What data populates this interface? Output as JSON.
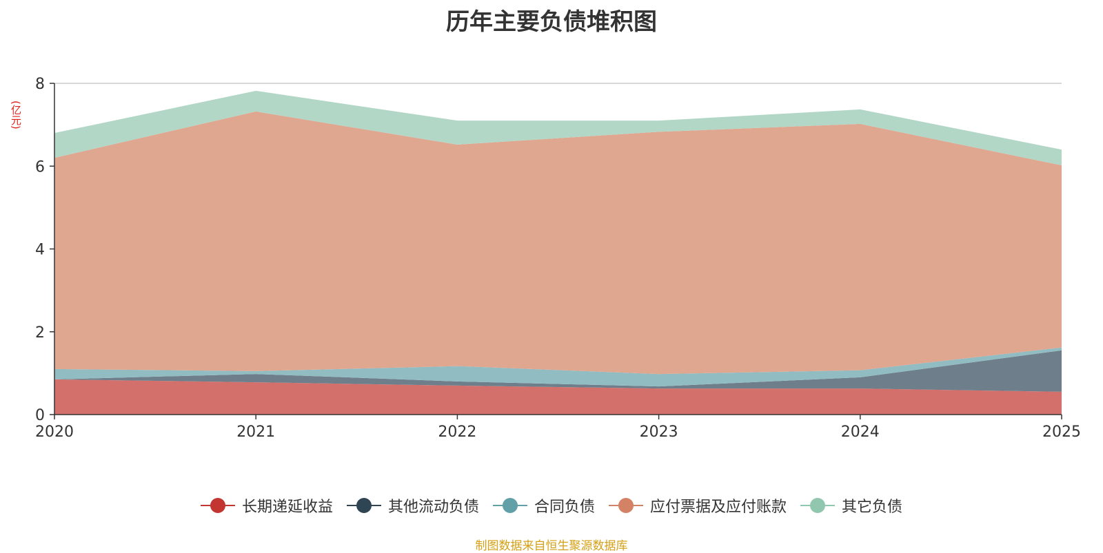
{
  "chart_data": {
    "type": "area",
    "stacked": true,
    "title": "历年主要负债堆积图",
    "ylabel": "(亿元)",
    "xlabel": "",
    "x": [
      "2020",
      "2021",
      "2022",
      "2023",
      "2024",
      "2025"
    ],
    "ylim": [
      0,
      8
    ],
    "yticks": [
      0,
      2,
      4,
      6,
      8
    ],
    "grid": true,
    "legend_position": "bottom",
    "series": [
      {
        "name": "长期递延收益",
        "color": "#c23531",
        "fill": "#d4706c",
        "values": [
          0.85,
          0.78,
          0.7,
          0.63,
          0.63,
          0.55
        ]
      },
      {
        "name": "其他流动负债",
        "color": "#2f4554",
        "fill": "#6e7e8a",
        "values": [
          0.0,
          0.2,
          0.1,
          0.05,
          0.27,
          1.0
        ]
      },
      {
        "name": "合同负债",
        "color": "#61a0a8",
        "fill": "#90bcc2",
        "values": [
          0.25,
          0.07,
          0.37,
          0.3,
          0.17,
          0.07
        ]
      },
      {
        "name": "应付票据及应付账款",
        "color": "#d48265",
        "fill": "#dfa690",
        "values": [
          5.1,
          6.27,
          5.35,
          5.85,
          5.95,
          4.4
        ]
      },
      {
        "name": "其它负债",
        "color": "#91c7ae",
        "fill": "#b2d7c6",
        "values": [
          0.6,
          0.5,
          0.58,
          0.27,
          0.35,
          0.38
        ]
      }
    ]
  },
  "source_note": "制图数据来自恒生聚源数据库"
}
